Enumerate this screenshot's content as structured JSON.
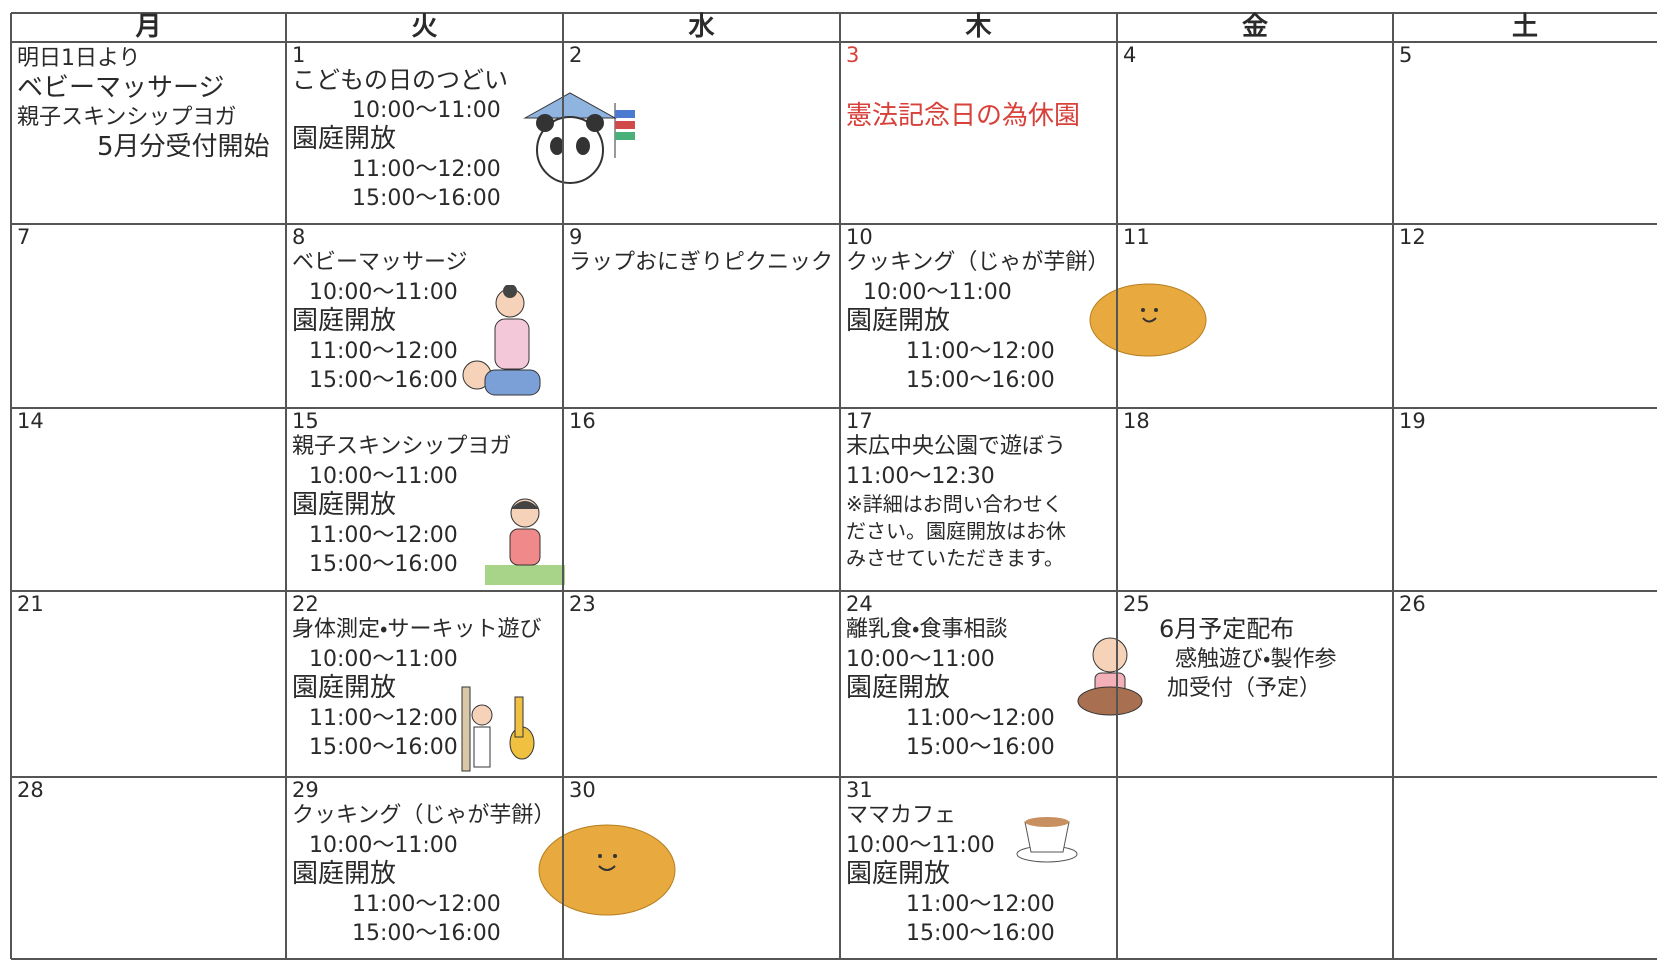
{
  "calendar": {
    "headers": [
      "月",
      "火",
      "水",
      "木",
      "金",
      "土"
    ],
    "weeks": [
      [
        {
          "lines": [
            "明日1日より",
            "ベビーマッサージ",
            "親子スキンシップヨガ",
            "5月分受付開始"
          ]
        },
        {
          "day": "1",
          "lines": [
            "こどもの日のつどい",
            "10:00〜11:00",
            "園庭開放",
            "11:00〜12:00",
            "15:00〜16:00"
          ]
        },
        {
          "day": "2"
        },
        {
          "day": "3",
          "lines": [
            "憲法記念日の為休園"
          ]
        },
        {
          "day": "4"
        },
        {
          "day": "5"
        }
      ],
      [
        {
          "day": "7"
        },
        {
          "day": "8",
          "lines": [
            "ベビーマッサージ",
            "10:00〜11:00",
            "園庭開放",
            "11:00〜12:00",
            "15:00〜16:00"
          ]
        },
        {
          "day": "9",
          "lines": [
            "ラップおにぎりピクニック"
          ]
        },
        {
          "day": "10",
          "lines": [
            "クッキング（じゃが芋餅）",
            "10:00〜11:00",
            "園庭開放",
            "11:00〜12:00",
            "15:00〜16:00"
          ]
        },
        {
          "day": "11"
        },
        {
          "day": "12"
        }
      ],
      [
        {
          "day": "14"
        },
        {
          "day": "15",
          "lines": [
            "親子スキンシップヨガ",
            "10:00〜11:00",
            "園庭開放",
            "11:00〜12:00",
            "15:00〜16:00"
          ]
        },
        {
          "day": "16"
        },
        {
          "day": "17",
          "lines": [
            "末広中央公園で遊ぼう",
            "11:00〜12:30",
            "※詳細はお問い合わせく",
            "ださい。園庭開放はお休",
            "みさせていただきます。"
          ]
        },
        {
          "day": "18"
        },
        {
          "day": "19"
        }
      ],
      [
        {
          "day": "21"
        },
        {
          "day": "22",
          "lines": [
            "身体測定・サーキット遊び",
            "10:00〜11:00",
            "園庭開放",
            "11:00〜12:00",
            "15:00〜16:00"
          ]
        },
        {
          "day": "23"
        },
        {
          "day": "24",
          "lines": [
            "離乳食・食事相談",
            "10:00〜11:00",
            "園庭開放",
            "11:00〜12:00",
            "15:00〜16:00"
          ]
        },
        {
          "day": "25",
          "lines": [
            "6月予定配布",
            "感触遊び・製作参",
            "加受付（予定）"
          ]
        },
        {
          "day": "26"
        }
      ],
      [
        {
          "day": "28"
        },
        {
          "day": "29",
          "lines": [
            "クッキング（じゃが芋餅）",
            "10:00〜11:00",
            "園庭開放",
            "11:00〜12:00",
            "15:00〜16:00"
          ]
        },
        {
          "day": "30"
        },
        {
          "day": "31",
          "lines": [
            "ママカフェ",
            "10:00〜11:00",
            "園庭開放",
            "11:00〜12:00",
            "15:00〜16:00"
          ]
        },
        {},
        {}
      ]
    ]
  }
}
